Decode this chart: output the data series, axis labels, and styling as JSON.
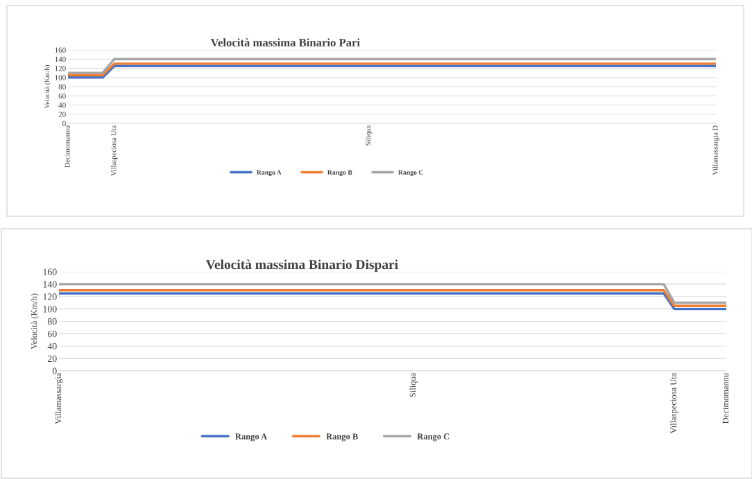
{
  "chart_data": [
    {
      "type": "line",
      "title": "Velocità massima Binario Pari",
      "ylabel": "Velocità (Km/h)",
      "categories": [
        "Decimomannu",
        null,
        null,
        null,
        "Villaspeciosa Uta",
        null,
        null,
        null,
        null,
        null,
        null,
        null,
        null,
        null,
        null,
        null,
        null,
        null,
        null,
        null,
        null,
        null,
        null,
        null,
        null,
        null,
        "Siliqua",
        null,
        null,
        null,
        null,
        null,
        null,
        null,
        null,
        null,
        null,
        null,
        null,
        null,
        null,
        null,
        null,
        null,
        null,
        null,
        null,
        null,
        null,
        null,
        null,
        null,
        null,
        null,
        null,
        null,
        "Villamassargia D"
      ],
      "series": [
        {
          "name": "Rango A",
          "color": "#4472c4",
          "values": [
            100,
            100,
            100,
            100,
            125,
            125,
            125,
            125,
            125,
            125,
            125,
            125,
            125,
            125,
            125,
            125,
            125,
            125,
            125,
            125,
            125,
            125,
            125,
            125,
            125,
            125,
            125,
            125,
            125,
            125,
            125,
            125,
            125,
            125,
            125,
            125,
            125,
            125,
            125,
            125,
            125,
            125,
            125,
            125,
            125,
            125,
            125,
            125,
            125,
            125,
            125,
            125,
            125,
            125,
            125,
            125,
            125
          ]
        },
        {
          "name": "Rango B",
          "color": "#ed7d31",
          "values": [
            105,
            105,
            105,
            105,
            130,
            130,
            130,
            130,
            130,
            130,
            130,
            130,
            130,
            130,
            130,
            130,
            130,
            130,
            130,
            130,
            130,
            130,
            130,
            130,
            130,
            130,
            130,
            130,
            130,
            130,
            130,
            130,
            130,
            130,
            130,
            130,
            130,
            130,
            130,
            130,
            130,
            130,
            130,
            130,
            130,
            130,
            130,
            130,
            130,
            130,
            130,
            130,
            130,
            130,
            130,
            130,
            130
          ]
        },
        {
          "name": "Rango C",
          "color": "#a5a5a5",
          "values": [
            110,
            110,
            110,
            110,
            140,
            140,
            140,
            140,
            140,
            140,
            140,
            140,
            140,
            140,
            140,
            140,
            140,
            140,
            140,
            140,
            140,
            140,
            140,
            140,
            140,
            140,
            140,
            140,
            140,
            140,
            140,
            140,
            140,
            140,
            140,
            140,
            140,
            140,
            140,
            140,
            140,
            140,
            140,
            140,
            140,
            140,
            140,
            140,
            140,
            140,
            140,
            140,
            140,
            140,
            140,
            140,
            140
          ]
        }
      ],
      "ylim": [
        0,
        160
      ],
      "yticks": [
        0,
        20,
        40,
        60,
        80,
        100,
        120,
        140,
        160
      ],
      "grid": "y",
      "legend": "bottom"
    },
    {
      "type": "line",
      "title": "Velocità massima Binario Dispari",
      "ylabel": "Velocità (Km/h)",
      "categories": [
        "Villamassargia",
        null,
        null,
        null,
        null,
        null,
        null,
        null,
        null,
        null,
        null,
        null,
        null,
        null,
        null,
        null,
        null,
        null,
        null,
        null,
        null,
        null,
        null,
        null,
        null,
        null,
        null,
        null,
        null,
        null,
        null,
        null,
        null,
        null,
        "Siliqua",
        null,
        null,
        null,
        null,
        null,
        null,
        null,
        null,
        null,
        null,
        null,
        null,
        null,
        null,
        null,
        null,
        null,
        null,
        null,
        null,
        null,
        null,
        null,
        null,
        "Villaspeciosa Uta",
        null,
        null,
        null,
        null,
        "Decimomannu"
      ],
      "series": [
        {
          "name": "Rango A",
          "color": "#4472c4",
          "values": [
            125,
            125,
            125,
            125,
            125,
            125,
            125,
            125,
            125,
            125,
            125,
            125,
            125,
            125,
            125,
            125,
            125,
            125,
            125,
            125,
            125,
            125,
            125,
            125,
            125,
            125,
            125,
            125,
            125,
            125,
            125,
            125,
            125,
            125,
            125,
            125,
            125,
            125,
            125,
            125,
            125,
            125,
            125,
            125,
            125,
            125,
            125,
            125,
            125,
            125,
            125,
            125,
            125,
            125,
            125,
            125,
            125,
            125,
            125,
            100,
            100,
            100,
            100,
            100,
            100
          ]
        },
        {
          "name": "Rango B",
          "color": "#ed7d31",
          "values": [
            130,
            130,
            130,
            130,
            130,
            130,
            130,
            130,
            130,
            130,
            130,
            130,
            130,
            130,
            130,
            130,
            130,
            130,
            130,
            130,
            130,
            130,
            130,
            130,
            130,
            130,
            130,
            130,
            130,
            130,
            130,
            130,
            130,
            130,
            130,
            130,
            130,
            130,
            130,
            130,
            130,
            130,
            130,
            130,
            130,
            130,
            130,
            130,
            130,
            130,
            130,
            130,
            130,
            130,
            130,
            130,
            130,
            130,
            130,
            105,
            105,
            105,
            105,
            105,
            105
          ]
        },
        {
          "name": "Rango C",
          "color": "#a5a5a5",
          "values": [
            140,
            140,
            140,
            140,
            140,
            140,
            140,
            140,
            140,
            140,
            140,
            140,
            140,
            140,
            140,
            140,
            140,
            140,
            140,
            140,
            140,
            140,
            140,
            140,
            140,
            140,
            140,
            140,
            140,
            140,
            140,
            140,
            140,
            140,
            140,
            140,
            140,
            140,
            140,
            140,
            140,
            140,
            140,
            140,
            140,
            140,
            140,
            140,
            140,
            140,
            140,
            140,
            140,
            140,
            140,
            140,
            140,
            140,
            140,
            110,
            110,
            110,
            110,
            110,
            110
          ]
        }
      ],
      "ylim": [
        0,
        160
      ],
      "yticks": [
        0,
        20,
        40,
        60,
        80,
        100,
        120,
        140,
        160
      ],
      "grid": "y",
      "legend": "bottom"
    }
  ]
}
